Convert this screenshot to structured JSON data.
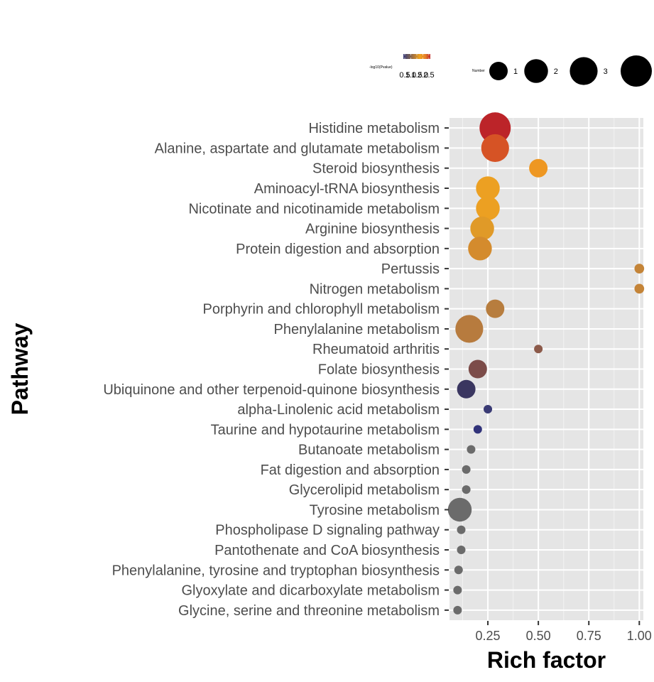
{
  "chart_data": {
    "type": "scatter",
    "xlabel": "Rich factor",
    "ylabel": "Pathway",
    "xlim": [
      0.06,
      1.02
    ],
    "x_ticks": [
      0.25,
      0.5,
      0.75,
      1.0
    ],
    "x_tick_labels": [
      "0.25",
      "0.50",
      "0.75",
      "1.00"
    ],
    "grid": true,
    "legend_position": "top",
    "color_legend": {
      "title": "-log10(Pvalue)",
      "tick_labels": [
        "0.5",
        "1.0",
        "1.5",
        "2.0",
        "2.5"
      ],
      "gradient": [
        "#3b3d7a",
        "#6e5a5a",
        "#b0793a",
        "#eea21e",
        "#e7872a",
        "#c0292a"
      ]
    },
    "size_legend": {
      "title": "Number",
      "values": [
        1,
        2,
        3,
        4
      ],
      "labels": [
        "1",
        "2",
        "3",
        ""
      ]
    },
    "points": [
      {
        "pathway": "Histidine metabolism",
        "x": 0.286,
        "number": 4,
        "color": "#bc2429"
      },
      {
        "pathway": "Alanine, aspartate and glutamate metabolism",
        "x": 0.286,
        "number": 3,
        "color": "#d65325"
      },
      {
        "pathway": "Steroid biosynthesis",
        "x": 0.5,
        "number": 1,
        "color": "#ee9722"
      },
      {
        "pathway": "Aminoacyl-tRNA biosynthesis",
        "x": 0.25,
        "number": 2,
        "color": "#eca022"
      },
      {
        "pathway": "Nicotinate and nicotinamide metabolism",
        "x": 0.25,
        "number": 2,
        "color": "#eca022"
      },
      {
        "pathway": "Arginine biosynthesis",
        "x": 0.222,
        "number": 2,
        "color": "#e09a28"
      },
      {
        "pathway": "Protein digestion and absorption",
        "x": 0.211,
        "number": 2,
        "color": "#d48b2d"
      },
      {
        "pathway": "Pertussis",
        "x": 1.0,
        "number": 0.1,
        "color": "#c48438"
      },
      {
        "pathway": "Nitrogen metabolism",
        "x": 1.0,
        "number": 0.1,
        "color": "#c48438"
      },
      {
        "pathway": "Porphyrin and chlorophyll metabolism",
        "x": 0.286,
        "number": 1,
        "color": "#b77d3e"
      },
      {
        "pathway": "Phenylalanine metabolism",
        "x": 0.158,
        "number": 3,
        "color": "#b77b3e"
      },
      {
        "pathway": "Rheumatoid arthritis",
        "x": 0.5,
        "number": 0.05,
        "color": "#8c5a4a"
      },
      {
        "pathway": "Folate biosynthesis",
        "x": 0.2,
        "number": 1,
        "color": "#7c4c49"
      },
      {
        "pathway": "Ubiquinone and other terpenoid-quinone biosynthesis",
        "x": 0.143,
        "number": 1,
        "color": "#3a3660"
      },
      {
        "pathway": "alpha-Linolenic acid metabolism",
        "x": 0.25,
        "number": 0.05,
        "color": "#3a3b75"
      },
      {
        "pathway": "Taurine and hypotaurine metabolism",
        "x": 0.2,
        "number": 0.05,
        "color": "#31337a"
      },
      {
        "pathway": "Butanoate metabolism",
        "x": 0.167,
        "number": 0.05,
        "color": "#6b6b6b"
      },
      {
        "pathway": "Fat digestion and absorption",
        "x": 0.143,
        "number": 0.05,
        "color": "#6b6b6b"
      },
      {
        "pathway": "Glycerolipid metabolism",
        "x": 0.143,
        "number": 0.05,
        "color": "#6b6b6b"
      },
      {
        "pathway": "Tyrosine metabolism",
        "x": 0.111,
        "number": 2,
        "color": "#6b6b6b"
      },
      {
        "pathway": "Phospholipase D signaling pathway",
        "x": 0.118,
        "number": 0.05,
        "color": "#6b6b6b"
      },
      {
        "pathway": "Pantothenate and CoA biosynthesis",
        "x": 0.118,
        "number": 0.05,
        "color": "#6b6b6b"
      },
      {
        "pathway": "Phenylalanine, tyrosine and tryptophan biosynthesis",
        "x": 0.105,
        "number": 0.05,
        "color": "#6b6b6b"
      },
      {
        "pathway": "Glyoxylate and dicarboxylate metabolism",
        "x": 0.1,
        "number": 0.05,
        "color": "#6b6b6b"
      },
      {
        "pathway": "Glycine, serine and threonine metabolism",
        "x": 0.1,
        "number": 0.05,
        "color": "#6b6b6b"
      }
    ]
  }
}
